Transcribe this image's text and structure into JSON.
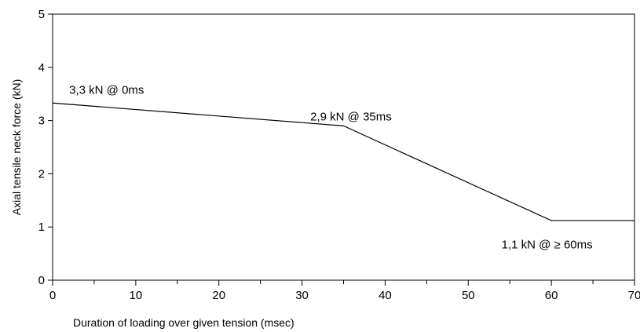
{
  "chart_data": {
    "type": "line",
    "title": "",
    "xlabel": "Duration of loading over given tension (msec)",
    "ylabel": "Axial tensile neck force (kN)",
    "xlim": [
      0,
      70
    ],
    "ylim": [
      0,
      5
    ],
    "x_ticks": [
      "0",
      "10",
      "20",
      "30",
      "40",
      "50",
      "60",
      "70"
    ],
    "y_ticks": [
      "0",
      "1",
      "2",
      "3",
      "4",
      "5"
    ],
    "grid": false,
    "legend": "none",
    "series": [
      {
        "points": [
          {
            "x": 0,
            "y": 3.33
          },
          {
            "x": 35,
            "y": 2.9
          },
          {
            "x": 60,
            "y": 1.12
          },
          {
            "x": 70,
            "y": 1.12
          }
        ],
        "color": "#000000"
      }
    ],
    "annotations": [
      {
        "text": "3,3 kN @ 0ms",
        "x": 2,
        "y": 3.5
      },
      {
        "text": "2,9 kN @ 35ms",
        "x": 31,
        "y": 3.0
      },
      {
        "text": "1,1 kN @ ≥ 60ms",
        "x": 54,
        "y": 0.6
      }
    ]
  }
}
